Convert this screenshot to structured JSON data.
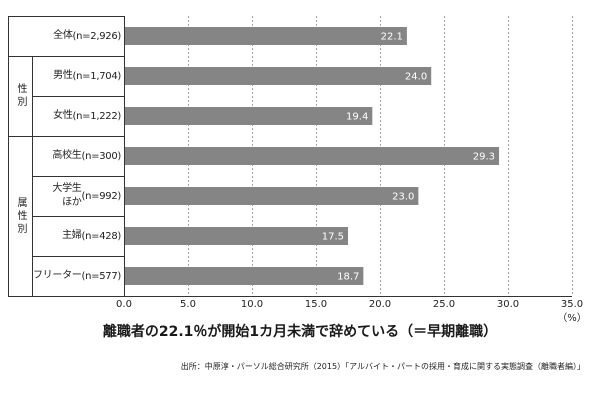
{
  "chart_data": {
    "type": "bar",
    "orientation": "horizontal",
    "title": "離職者の22.1％が開始1カ月未満で辞めている（＝早期離職）",
    "categories": [
      {
        "label": [
          "全体"
        ],
        "n": "(n=2,926)"
      },
      {
        "label": [
          "男性"
        ],
        "n": "(n=1,704)"
      },
      {
        "label": [
          "女性"
        ],
        "n": "(n=1,222)"
      },
      {
        "label": [
          "高校生"
        ],
        "n": "(n=300)"
      },
      {
        "label": [
          "大学生",
          "ほか"
        ],
        "n": "(n=992)"
      },
      {
        "label": [
          "主婦"
        ],
        "n": "(n=428)"
      },
      {
        "label": [
          "フリーター"
        ],
        "n": "(n=577)"
      }
    ],
    "groups": [
      {
        "label": "性別",
        "rows": [
          1,
          2
        ]
      },
      {
        "label": "属性別",
        "rows": [
          3,
          6
        ]
      }
    ],
    "values": [
      22.1,
      24.0,
      19.4,
      29.3,
      23.0,
      17.5,
      18.7
    ],
    "value_labels": [
      "22.1",
      "24.0",
      "19.4",
      "29.3",
      "23.0",
      "17.5",
      "18.7"
    ],
    "xlim": [
      0,
      35
    ],
    "xticks": [
      "0.0",
      "5.0",
      "10.0",
      "15.0",
      "20.0",
      "25.0",
      "30.0",
      "35.0"
    ],
    "xunit": "（%）",
    "grid": true,
    "colors": {
      "bar": "#858585",
      "value_label": "#ffffff",
      "grid": "#a0a0a0",
      "axis": "#333333",
      "text": "#222222"
    }
  },
  "source": "出所：中原淳・パーソル総合研究所（2015）「アルバイト・パートの採用・育成に関する実態調査（離職者編）」"
}
